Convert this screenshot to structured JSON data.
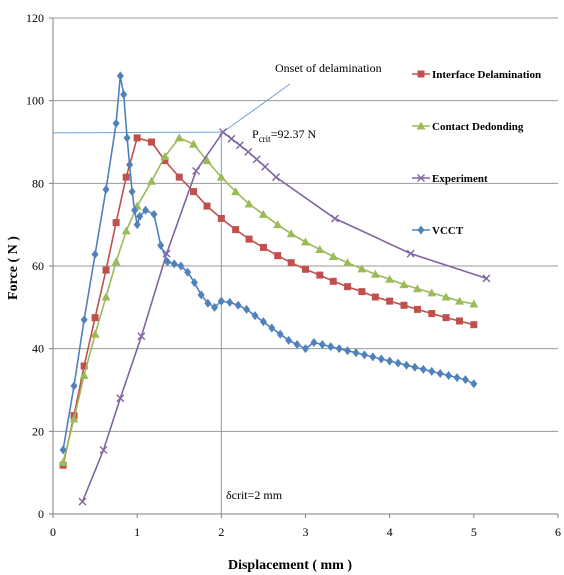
{
  "chart_data": {
    "type": "line",
    "title": "",
    "xlabel": "Displacement ( mm )",
    "ylabel": "Force ( N )",
    "xlim": [
      0,
      6
    ],
    "ylim": [
      0,
      120
    ],
    "xticks": [
      "0",
      "1",
      "2",
      "3",
      "4",
      "5",
      "6"
    ],
    "yticks": [
      "0",
      "20",
      "40",
      "60",
      "80",
      "100",
      "120"
    ],
    "grid": "horizontal",
    "legend_position": "right",
    "series": [
      {
        "name": "Interface Delamination",
        "color": "#c0504d",
        "marker": "square",
        "x": [
          0.12,
          0.25,
          0.37,
          0.5,
          0.63,
          0.75,
          0.87,
          1.0,
          1.17,
          1.33,
          1.5,
          1.67,
          1.83,
          2.0,
          2.17,
          2.33,
          2.5,
          2.67,
          2.83,
          3.0,
          3.17,
          3.33,
          3.5,
          3.67,
          3.83,
          4.0,
          4.17,
          4.33,
          4.5,
          4.67,
          4.83,
          5.0
        ],
        "y": [
          11.8,
          23.8,
          35.8,
          47.5,
          59.0,
          70.5,
          81.5,
          91.0,
          90.0,
          85.5,
          81.5,
          78.0,
          74.5,
          71.5,
          68.8,
          66.5,
          64.5,
          62.5,
          60.8,
          59.2,
          57.8,
          56.3,
          55.0,
          53.8,
          52.5,
          51.5,
          50.5,
          49.5,
          48.5,
          47.5,
          46.7,
          45.8
        ]
      },
      {
        "name": "Contact Dedonding",
        "color": "#9bbb59",
        "marker": "triangle",
        "x": [
          0.12,
          0.25,
          0.37,
          0.5,
          0.63,
          0.75,
          0.87,
          1.0,
          1.17,
          1.33,
          1.5,
          1.67,
          1.83,
          2.0,
          2.17,
          2.33,
          2.5,
          2.67,
          2.83,
          3.0,
          3.17,
          3.33,
          3.5,
          3.67,
          3.83,
          4.0,
          4.17,
          4.33,
          4.5,
          4.67,
          4.83,
          5.0
        ],
        "y": [
          12.5,
          23.0,
          33.5,
          43.5,
          52.5,
          61.0,
          68.5,
          74.5,
          80.5,
          86.5,
          91.0,
          89.5,
          85.5,
          81.5,
          78.0,
          75.0,
          72.5,
          70.0,
          67.8,
          65.8,
          64.0,
          62.3,
          60.8,
          59.3,
          58.0,
          56.8,
          55.5,
          54.5,
          53.5,
          52.5,
          51.5,
          50.8
        ]
      },
      {
        "name": "Experiment",
        "color": "#8064a2",
        "marker": "x",
        "x": [
          0.35,
          0.6,
          0.8,
          1.05,
          1.35,
          1.7,
          2.02,
          2.12,
          2.22,
          2.32,
          2.42,
          2.52,
          2.65,
          3.35,
          4.25,
          5.15
        ],
        "y": [
          3.0,
          15.5,
          28.0,
          43.0,
          63.0,
          83.0,
          92.4,
          90.8,
          89.2,
          87.6,
          85.8,
          84.0,
          81.5,
          71.5,
          63.0,
          57.0
        ]
      },
      {
        "name": "VCCT",
        "color": "#4f81bd",
        "marker": "diamond",
        "x": [
          0.12,
          0.25,
          0.37,
          0.5,
          0.63,
          0.75,
          0.8,
          0.84,
          0.88,
          0.91,
          0.94,
          0.97,
          1.0,
          1.03,
          1.1,
          1.2,
          1.28,
          1.36,
          1.44,
          1.52,
          1.6,
          1.68,
          1.76,
          1.84,
          1.92,
          2.0,
          2.1,
          2.2,
          2.3,
          2.4,
          2.5,
          2.6,
          2.7,
          2.8,
          2.9,
          3.0,
          3.1,
          3.2,
          3.3,
          3.4,
          3.5,
          3.6,
          3.7,
          3.8,
          3.9,
          4.0,
          4.1,
          4.2,
          4.3,
          4.4,
          4.5,
          4.6,
          4.7,
          4.8,
          4.9,
          5.0
        ],
        "y": [
          15.5,
          31.0,
          47.0,
          62.8,
          78.5,
          94.5,
          106.0,
          101.5,
          91.0,
          84.5,
          78.0,
          73.5,
          70.0,
          72.0,
          73.5,
          72.5,
          65.0,
          61.0,
          60.5,
          60.0,
          58.5,
          56.0,
          53.0,
          51.0,
          50.0,
          51.5,
          51.2,
          50.5,
          49.5,
          48.0,
          46.5,
          45.0,
          43.5,
          42.0,
          41.0,
          40.0,
          41.5,
          41.0,
          40.5,
          40.0,
          39.5,
          39.0,
          38.5,
          38.0,
          37.5,
          37.0,
          36.5,
          36.0,
          35.5,
          35.0,
          34.5,
          34.0,
          33.5,
          33.0,
          32.5,
          31.5
        ]
      }
    ],
    "annotations": {
      "onset_label": "Onset of delamination",
      "pcrit_prefix": "P",
      "pcrit_sub": "crit",
      "pcrit_value": "=92.37 N",
      "pcrit_point": {
        "x": 2.02,
        "y": 92.4
      },
      "dcrit_label": "δcrit=2 mm",
      "dcrit_x": 2.0
    }
  }
}
